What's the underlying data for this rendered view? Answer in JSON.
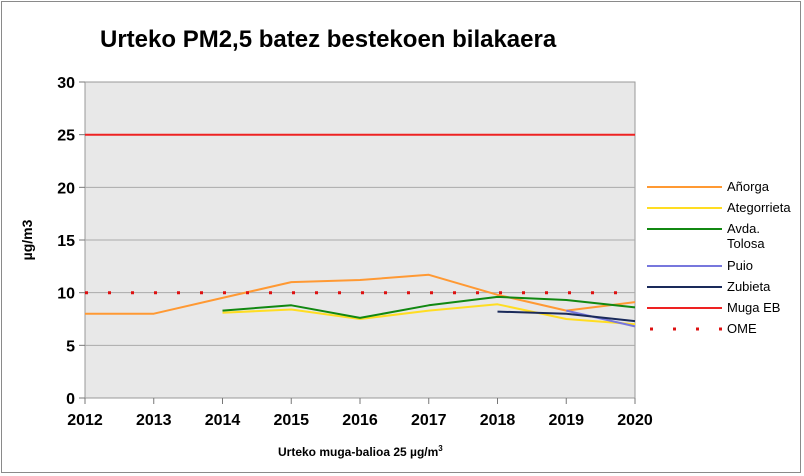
{
  "chart_data": {
    "type": "line",
    "title": "Urteko PM2,5 batez bestekoen bilakaera",
    "xlabel": "Urteko muga-balioa 25 µg/m",
    "xlabel_superscript": "3",
    "ylabel": "µg/m3",
    "ylim": [
      0,
      30
    ],
    "y_ticks": [
      "0",
      "5",
      "10",
      "15",
      "20",
      "25",
      "30"
    ],
    "categories": [
      "2012",
      "2013",
      "2014",
      "2015",
      "2016",
      "2017",
      "2018",
      "2019",
      "2020"
    ],
    "grid": true,
    "legend_position": "right",
    "series": [
      {
        "name": "Añorga",
        "color": "#ff9933",
        "style": "solid",
        "values": [
          8.0,
          8.0,
          9.5,
          11.0,
          11.2,
          11.7,
          9.8,
          8.3,
          9.1
        ]
      },
      {
        "name": "Ategorrieta",
        "color": "#ffdd22",
        "style": "solid",
        "values": [
          null,
          null,
          8.1,
          8.4,
          7.5,
          8.3,
          8.9,
          7.5,
          7.0
        ]
      },
      {
        "name": "Avda. Tolosa",
        "color": "#118811",
        "style": "solid",
        "values": [
          null,
          null,
          8.3,
          8.8,
          7.6,
          8.8,
          9.6,
          9.3,
          8.6
        ]
      },
      {
        "name": "Puio",
        "color": "#7777dd",
        "style": "solid",
        "values": [
          null,
          null,
          null,
          null,
          null,
          null,
          null,
          8.3,
          6.8
        ]
      },
      {
        "name": "Zubieta",
        "color": "#1a2a5a",
        "style": "solid",
        "values": [
          null,
          null,
          null,
          null,
          null,
          null,
          8.2,
          8.0,
          7.3
        ]
      },
      {
        "name": "Muga EB",
        "color": "#ee2222",
        "style": "solid",
        "values": [
          25,
          25,
          25,
          25,
          25,
          25,
          25,
          25,
          25
        ]
      },
      {
        "name": "OME",
        "color": "#dd1111",
        "style": "dotted",
        "values": [
          10,
          10,
          10,
          10,
          10,
          10,
          10,
          10,
          10
        ]
      }
    ]
  }
}
